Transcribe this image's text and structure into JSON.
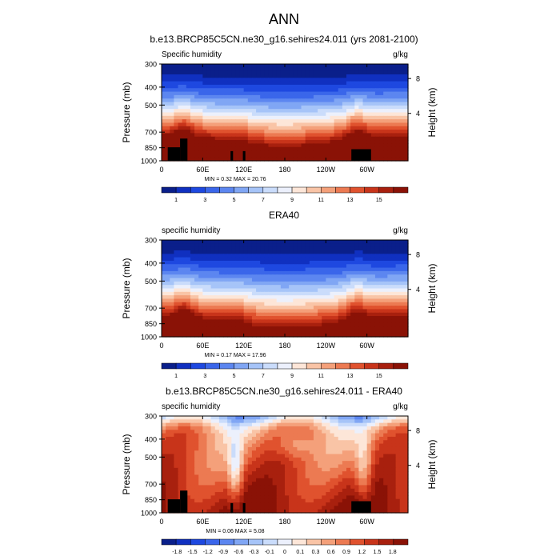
{
  "title": "ANN",
  "colors": {
    "abs_scale": [
      "#0a1f8a",
      "#1030c0",
      "#1e48e0",
      "#3a66ea",
      "#5c86f0",
      "#80a6f4",
      "#a6c4f8",
      "#cadcfb",
      "#ecf0fc",
      "#fde6d8",
      "#f9c4a6",
      "#f4a07a",
      "#ec7a52",
      "#e0522e",
      "#c8341a",
      "#a8200e",
      "#8a1206"
    ],
    "diff_scale": [
      "#0a1f8a",
      "#1030c0",
      "#1e48e0",
      "#3a66ea",
      "#5c86f0",
      "#80a6f4",
      "#a6c4f8",
      "#cadcfb",
      "#ecf0fc",
      "#fde6d8",
      "#f9c4a6",
      "#f4a07a",
      "#ec7a52",
      "#e0522e",
      "#c8341a",
      "#a8200e",
      "#8a1206"
    ],
    "land": "#000000"
  },
  "chart_data": [
    {
      "type": "heatmap",
      "title": "b.e13.BRCP85C5CN.ne30_g16.sehires24.011 (yrs 2081-2100)",
      "left_label": "Specific humidity",
      "units": "g/kg",
      "xlabel": "",
      "ylabel": "Pressure (mb)",
      "ylabel_right": "Height (km)",
      "x_ticks": [
        "0",
        "60E",
        "120E",
        "180",
        "120W",
        "60W"
      ],
      "y_ticks": [
        "300",
        "400",
        "500",
        "700",
        "850",
        "1000"
      ],
      "y_ticks_right": [
        "8",
        "4"
      ],
      "ylim": [
        1000,
        300
      ],
      "stats": "MIN =   0.32  MAX =  20.76",
      "colorbar_labels": [
        "1",
        "3",
        "5",
        "7",
        "9",
        "11",
        "13",
        "15"
      ],
      "min": 0.32,
      "max": 20.76
    },
    {
      "type": "heatmap",
      "title": "ERA40",
      "left_label": "specific humidity",
      "units": "g/kg",
      "xlabel": "",
      "ylabel": "Pressure (mb)",
      "ylabel_right": "Height (km)",
      "x_ticks": [
        "0",
        "60E",
        "120E",
        "180",
        "120W",
        "60W"
      ],
      "y_ticks": [
        "300",
        "400",
        "500",
        "700",
        "850",
        "1000"
      ],
      "y_ticks_right": [
        "8",
        "4"
      ],
      "ylim": [
        1000,
        300
      ],
      "stats": "MIN =   0.17  MAX =  17.96",
      "colorbar_labels": [
        "1",
        "3",
        "5",
        "7",
        "9",
        "11",
        "13",
        "15"
      ],
      "min": 0.17,
      "max": 17.96
    },
    {
      "type": "heatmap",
      "title": "b.e13.BRCP85C5CN.ne30_g16.sehires24.011 - ERA40",
      "left_label": "specific humidity",
      "units": "g/kg",
      "xlabel": "",
      "ylabel": "Pressure (mb)",
      "ylabel_right": "Height (km)",
      "x_ticks": [
        "0",
        "60E",
        "120E",
        "180",
        "120W",
        "60W"
      ],
      "y_ticks": [
        "300",
        "400",
        "500",
        "700",
        "850",
        "1000"
      ],
      "y_ticks_right": [
        "8",
        "4"
      ],
      "ylim": [
        1000,
        300
      ],
      "stats": "MIN =   0.06  MAX =   5.08",
      "colorbar_labels": [
        "-1.8",
        "-1.5",
        "-1.2",
        "-0.9",
        "-0.6",
        "-0.3",
        "-0.1",
        "0",
        "0.1",
        "0.3",
        "0.6",
        "0.9",
        "1.2",
        "1.5",
        "1.8"
      ],
      "min": 0.06,
      "max": 5.08
    }
  ]
}
